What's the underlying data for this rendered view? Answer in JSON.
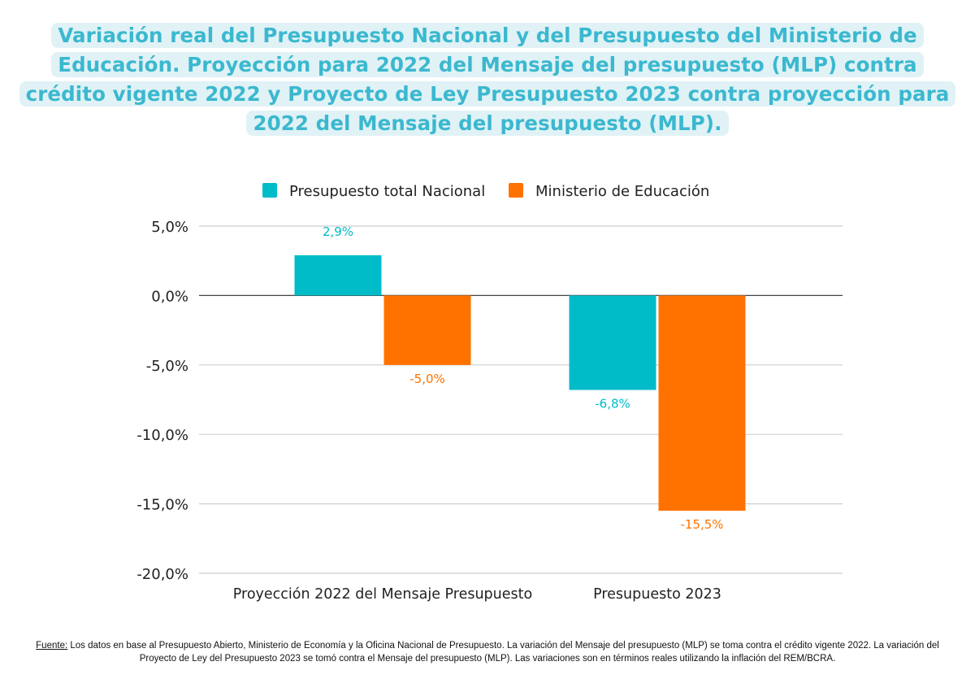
{
  "title": "Variación real del Presupuesto Nacional y del Presupuesto del Ministerio de Educación. Proyección para 2022 del Mensaje del presupuesto (MLP) contra crédito vigente 2022 y Proyecto de Ley Presupuesto 2023 contra proyección para 2022 del Mensaje del presupuesto (MLP).",
  "footer": {
    "label": "Fuente:",
    "text": " Los datos en base al Presupuesto Abierto, Ministerio de Economía y la Oficina Nacional de Presupuesto. La variación del Mensaje del presupuesto (MLP) se toma contra el crédito vigente 2022. La variación del Proyecto de Ley del Presupuesto 2023 se tomó contra el Mensaje del presupuesto (MLP). Las variaciones son en términos reales utilizando la inflación del REM/BCRA."
  },
  "chart_data": {
    "type": "bar",
    "categories": [
      "Proyección 2022 del Mensaje Presupuesto",
      "Presupuesto 2023"
    ],
    "series": [
      {
        "name": "Presupuesto total Nacional",
        "values": [
          2.9,
          -6.8
        ],
        "labels": [
          "2,9%",
          "-6,8%"
        ],
        "color": "#00bcc8"
      },
      {
        "name": "Ministerio de Educación",
        "values": [
          -5.0,
          -15.5
        ],
        "labels": [
          "-5,0%",
          "-15,5%"
        ],
        "color": "#ff7200"
      }
    ],
    "ylim": [
      -20,
      5
    ],
    "yticks": [
      5,
      0,
      -5,
      -10,
      -15,
      -20
    ],
    "ytick_labels": [
      "5,0%",
      "0,0%",
      "-5,0%",
      "-10,0%",
      "-15,0%",
      "-20,0%"
    ],
    "grid": true,
    "legend": "top-center",
    "xlabel": "",
    "ylabel": ""
  }
}
